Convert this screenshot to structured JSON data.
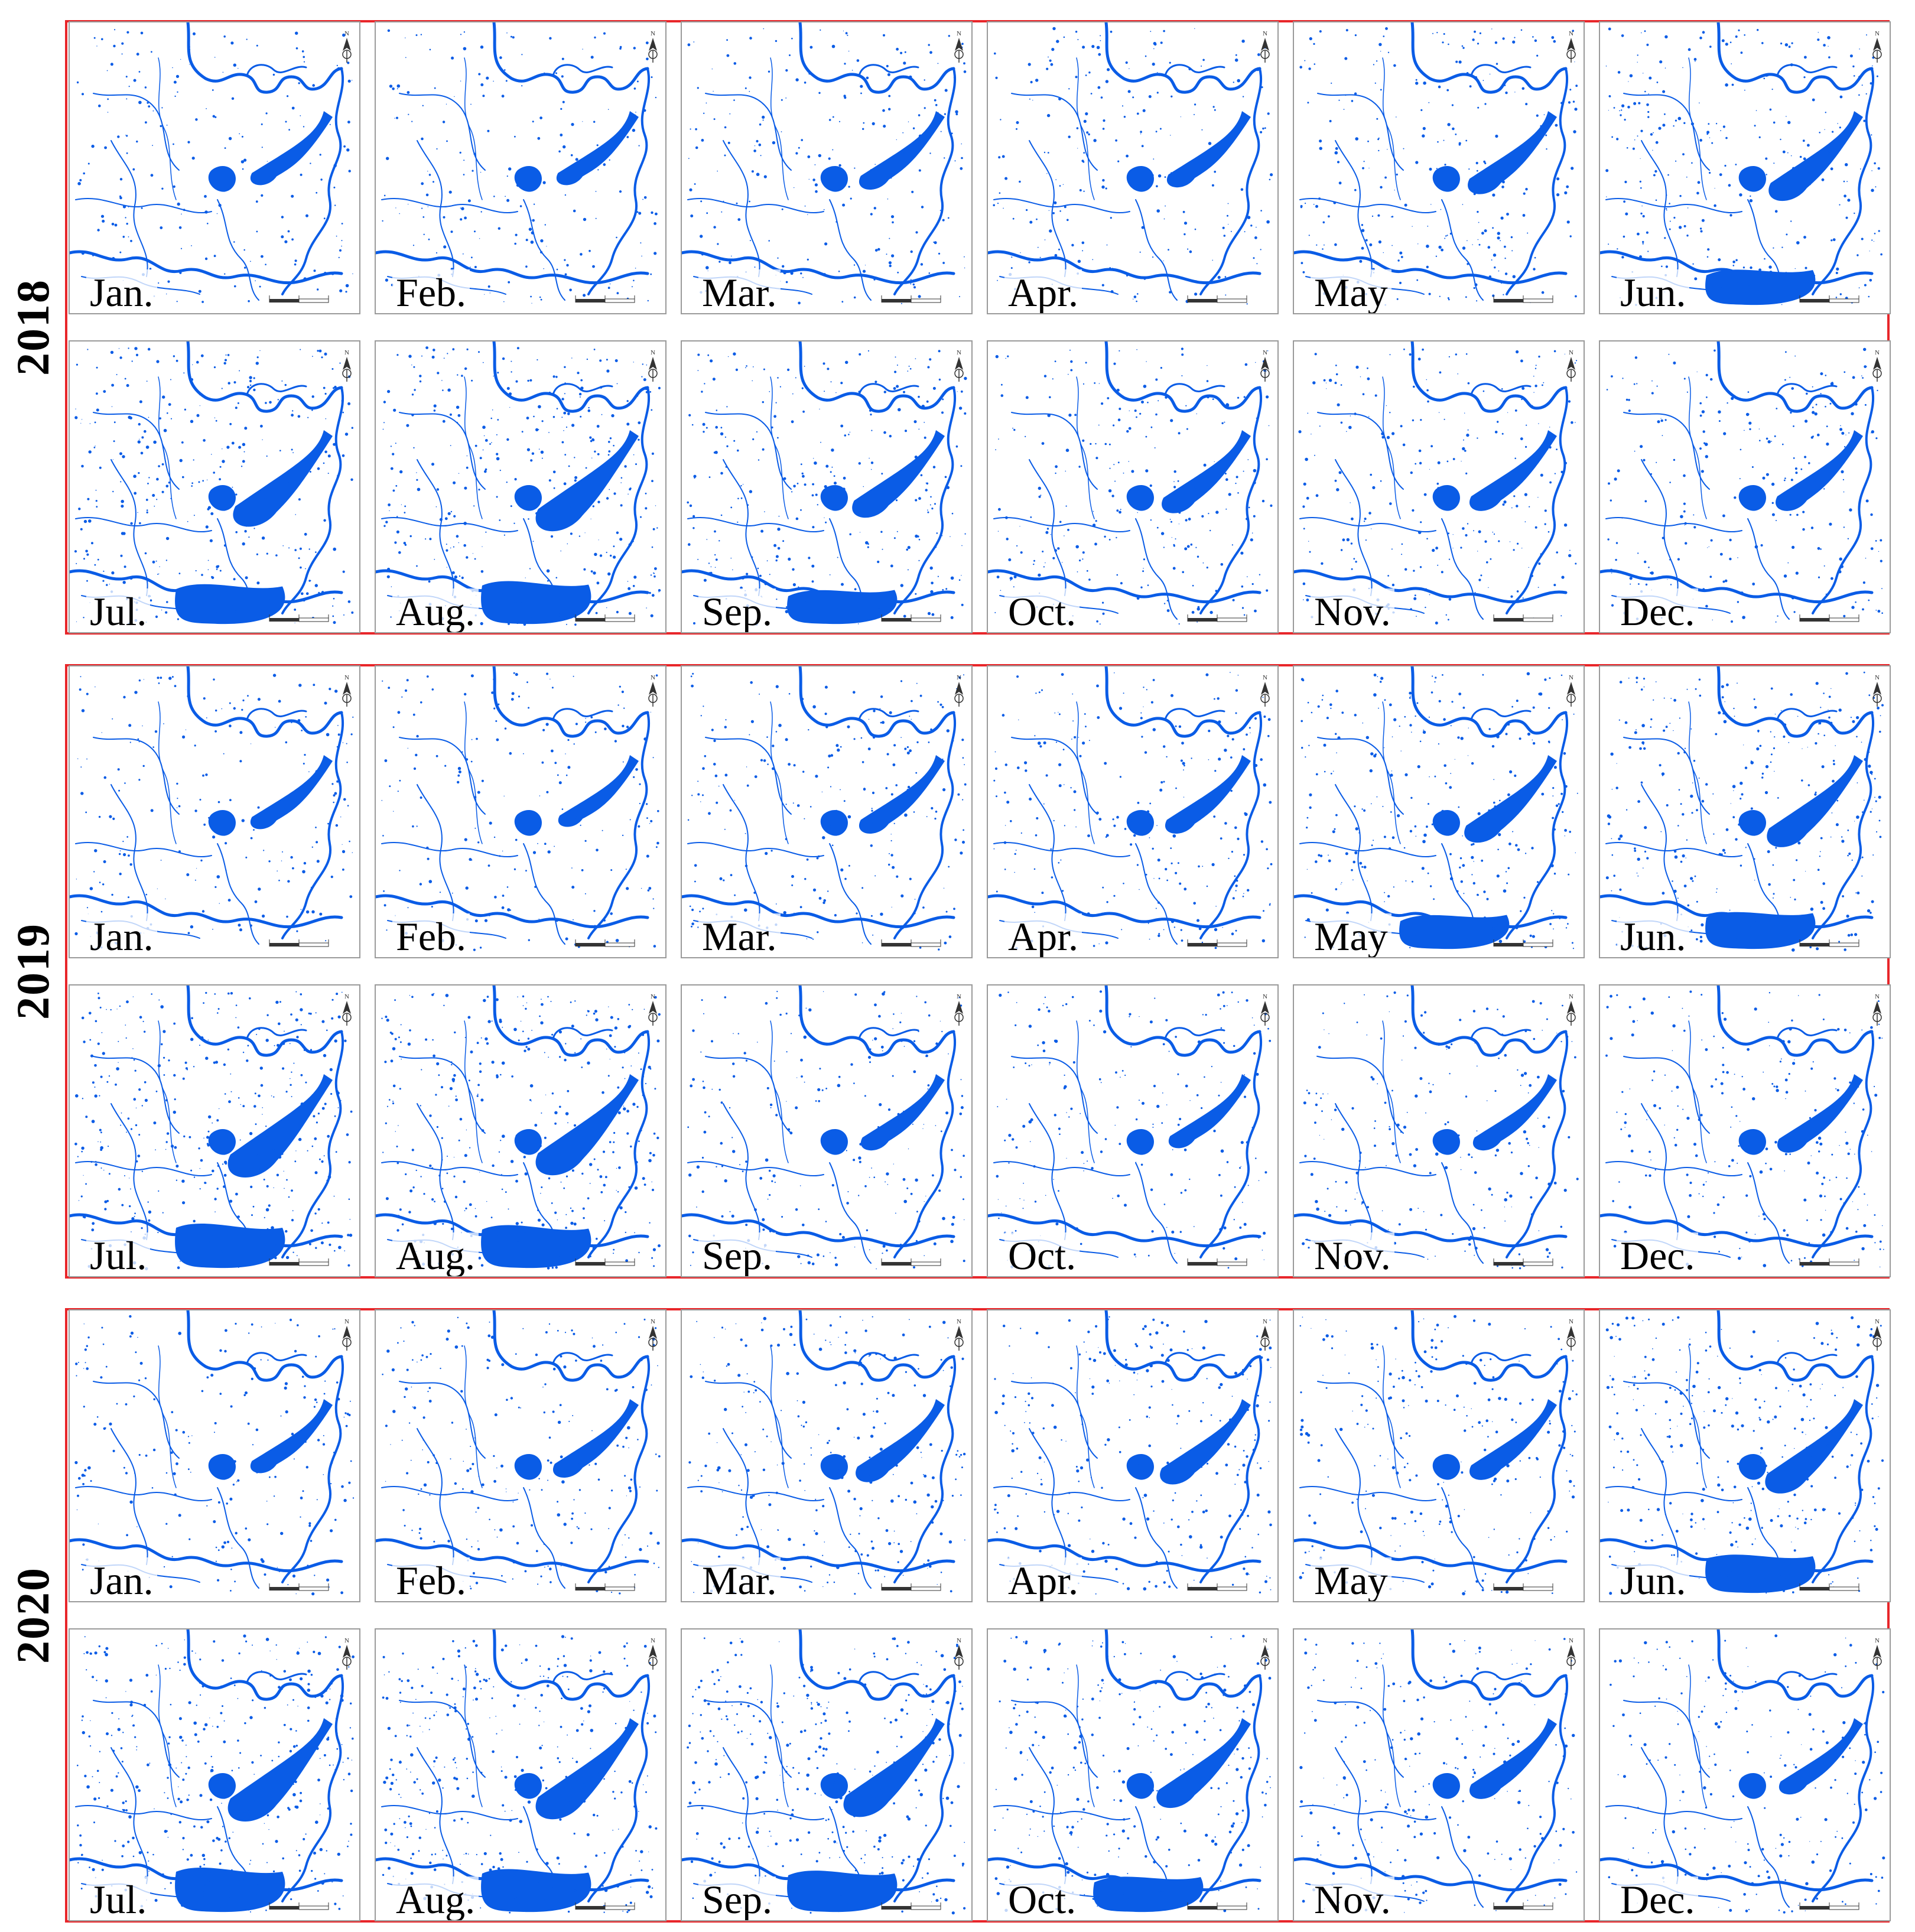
{
  "years": [
    {
      "label": "2018",
      "months": [
        "Jan.",
        "Feb.",
        "Mar.",
        "Apr.",
        "May",
        "Jun.",
        "Jul.",
        "Aug.",
        "Sep.",
        "Oct.",
        "Nov.",
        "Dec."
      ],
      "water_extent": [
        0.35,
        0.35,
        0.45,
        0.4,
        0.55,
        0.7,
        0.85,
        0.95,
        0.65,
        0.55,
        0.5,
        0.5
      ]
    },
    {
      "label": "2019",
      "months": [
        "Jan.",
        "Feb.",
        "Mar.",
        "Apr.",
        "May",
        "Jun.",
        "Jul.",
        "Aug.",
        "Sep.",
        "Oct.",
        "Nov.",
        "Dec."
      ],
      "water_extent": [
        0.35,
        0.3,
        0.45,
        0.45,
        0.65,
        0.75,
        1.0,
        0.95,
        0.4,
        0.35,
        0.4,
        0.45
      ]
    },
    {
      "label": "2020",
      "months": [
        "Jan.",
        "Feb.",
        "Mar.",
        "Apr.",
        "May",
        "Jun.",
        "Jul.",
        "Aug.",
        "Sep.",
        "Oct.",
        "Nov.",
        "Dec."
      ],
      "water_extent": [
        0.35,
        0.45,
        0.55,
        0.6,
        0.5,
        0.8,
        1.0,
        0.95,
        0.9,
        0.7,
        0.5,
        0.4
      ]
    }
  ],
  "colors": {
    "water": "#0a5ce6",
    "frame": "#e8262a",
    "panel_border": "#9a9a9a"
  },
  "icons": {
    "north_arrow": "north-arrow-icon",
    "scale_bar": "scale-bar-icon"
  }
}
